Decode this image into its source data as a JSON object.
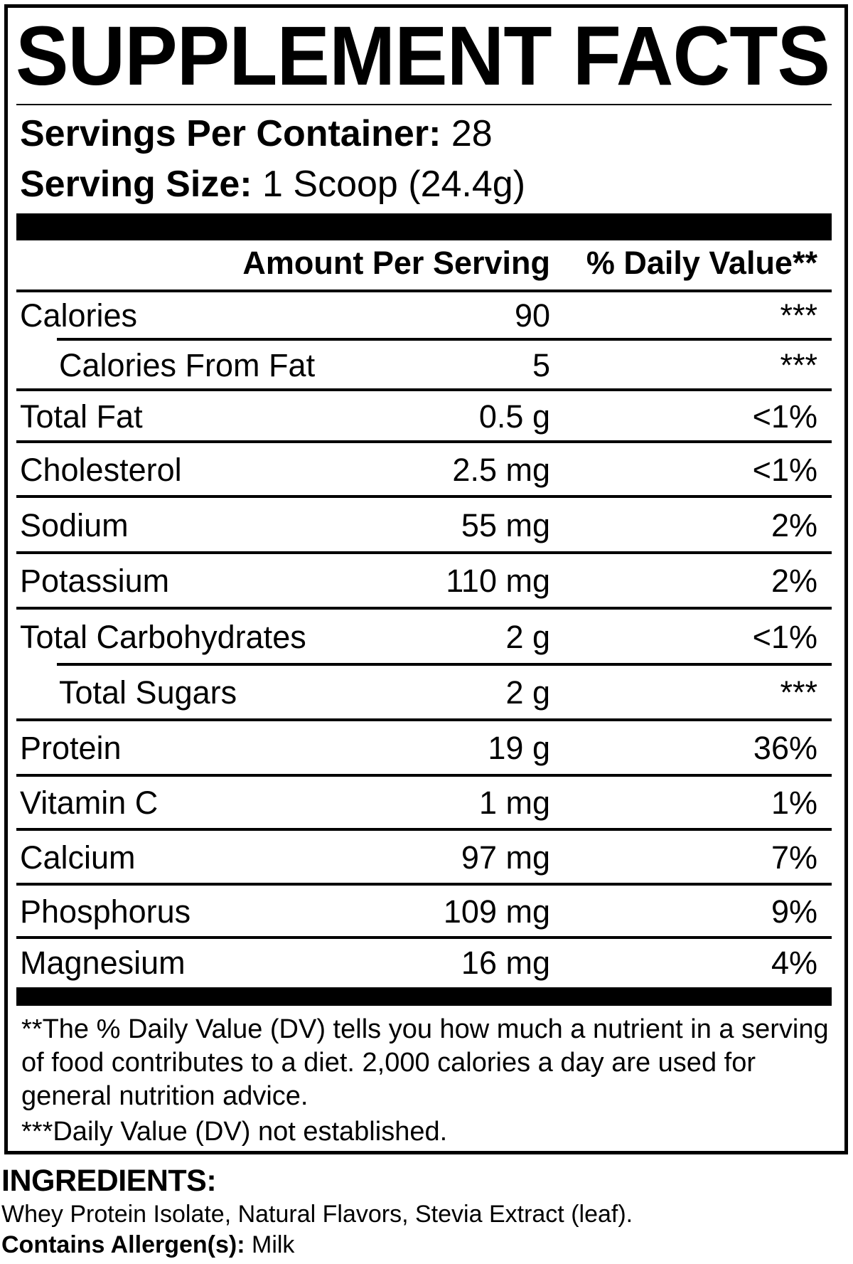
{
  "title": "SUPPLEMENT FACTS",
  "servings_per_container": {
    "label": "Servings Per Container:",
    "value": "28"
  },
  "serving_size": {
    "label": "Serving Size:",
    "value": "1 Scoop (24.4g)"
  },
  "headers": {
    "amount": "Amount Per Serving",
    "daily_value": "% Daily Value**"
  },
  "rows": [
    {
      "name": "Calories",
      "amount": "90",
      "dv": "***",
      "indent": false
    },
    {
      "name": "Calories From Fat",
      "amount": "5",
      "dv": "***",
      "indent": true
    },
    {
      "name": "Total Fat",
      "amount": "0.5 g",
      "dv": "<1%",
      "indent": false
    },
    {
      "name": "Cholesterol",
      "amount": "2.5 mg",
      "dv": "<1%",
      "indent": false
    },
    {
      "name": "Sodium",
      "amount": "55 mg",
      "dv": "2%",
      "indent": false
    },
    {
      "name": "Potassium",
      "amount": "110 mg",
      "dv": "2%",
      "indent": false
    },
    {
      "name": "Total Carbohydrates",
      "amount": "2 g",
      "dv": "<1%",
      "indent": false
    },
    {
      "name": "Total Sugars",
      "amount": "2 g",
      "dv": "***",
      "indent": true
    },
    {
      "name": "Protein",
      "amount": "19 g",
      "dv": "36%",
      "indent": false
    },
    {
      "name": "Vitamin C",
      "amount": "1 mg",
      "dv": "1%",
      "indent": false
    },
    {
      "name": "Calcium",
      "amount": "97 mg",
      "dv": "7%",
      "indent": false
    },
    {
      "name": "Phosphorus",
      "amount": "109 mg",
      "dv": "9%",
      "indent": false
    },
    {
      "name": "Magnesium",
      "amount": "16 mg",
      "dv": "4%",
      "indent": false
    }
  ],
  "footnotes": {
    "dv_note": "**The % Daily Value (DV) tells you how much a nutrient in a serving of food contributes to a diet. 2,000 calories a day are used for general nutrition advice.",
    "not_established": "***Daily Value (DV) not established."
  },
  "ingredients": {
    "heading": "INGREDIENTS:",
    "text": "Whey Protein Isolate, Natural Flavors, Stevia Extract (leaf).",
    "allergen_label": "Contains Allergen(s):",
    "allergen_value": "Milk"
  }
}
